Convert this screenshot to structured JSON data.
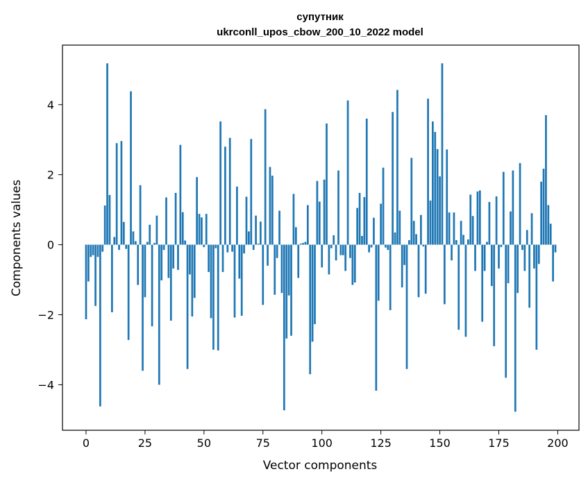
{
  "chart_data": {
    "type": "bar",
    "title": "супутник",
    "subtitle": "ukrconll_upos_cbow_200_10_2022 model",
    "xlabel": "Vector components",
    "ylabel": "Components values",
    "xlim": [
      -10,
      209
    ],
    "ylim": [
      -5.3,
      5.7
    ],
    "xticks": [
      0,
      25,
      50,
      75,
      100,
      125,
      150,
      175,
      200
    ],
    "yticks": [
      -4,
      -2,
      0,
      2,
      4
    ],
    "xtick_labels": [
      "0",
      "25",
      "50",
      "75",
      "100",
      "125",
      "150",
      "175",
      "200"
    ],
    "ytick_labels": [
      "−4",
      "−2",
      "0",
      "2",
      "4"
    ],
    "bar_color": "#1f77b4",
    "grid": false,
    "legend": "none",
    "x": [
      0,
      1,
      2,
      3,
      4,
      5,
      6,
      7,
      8,
      9,
      10,
      11,
      12,
      13,
      14,
      15,
      16,
      17,
      18,
      19,
      20,
      21,
      22,
      23,
      24,
      25,
      26,
      27,
      28,
      29,
      30,
      31,
      32,
      33,
      34,
      35,
      36,
      37,
      38,
      39,
      40,
      41,
      42,
      43,
      44,
      45,
      46,
      47,
      48,
      49,
      50,
      51,
      52,
      53,
      54,
      55,
      56,
      57,
      58,
      59,
      60,
      61,
      62,
      63,
      64,
      65,
      66,
      67,
      68,
      69,
      70,
      71,
      72,
      73,
      74,
      75,
      76,
      77,
      78,
      79,
      80,
      81,
      82,
      83,
      84,
      85,
      86,
      87,
      88,
      89,
      90,
      91,
      92,
      93,
      94,
      95,
      96,
      97,
      98,
      99,
      100,
      101,
      102,
      103,
      104,
      105,
      106,
      107,
      108,
      109,
      110,
      111,
      112,
      113,
      114,
      115,
      116,
      117,
      118,
      119,
      120,
      121,
      122,
      123,
      124,
      125,
      126,
      127,
      128,
      129,
      130,
      131,
      132,
      133,
      134,
      135,
      136,
      137,
      138,
      139,
      140,
      141,
      142,
      143,
      144,
      145,
      146,
      147,
      148,
      149,
      150,
      151,
      152,
      153,
      154,
      155,
      156,
      157,
      158,
      159,
      160,
      161,
      162,
      163,
      164,
      165,
      166,
      167,
      168,
      169,
      170,
      171,
      172,
      173,
      174,
      175,
      176,
      177,
      178,
      179,
      180,
      181,
      182,
      183,
      184,
      185,
      186,
      187,
      188,
      189,
      190,
      191,
      192,
      193,
      194,
      195,
      196,
      197,
      198,
      199
    ],
    "values": [
      -2.13,
      -1.05,
      -0.35,
      -0.3,
      -1.75,
      -0.35,
      -4.62,
      -0.2,
      1.12,
      5.18,
      1.42,
      -1.93,
      0.22,
      2.9,
      -0.15,
      2.96,
      0.65,
      -0.12,
      -2.72,
      4.38,
      0.38,
      0.1,
      -1.15,
      1.7,
      -3.6,
      -1.5,
      0.08,
      0.57,
      -2.33,
      0.05,
      0.83,
      -4.0,
      -1.02,
      -0.15,
      1.35,
      -0.95,
      -2.17,
      -0.68,
      1.48,
      -0.72,
      2.85,
      0.93,
      0.12,
      -3.55,
      -0.85,
      -2.05,
      -1.52,
      1.93,
      0.88,
      0.78,
      -0.07,
      0.88,
      -0.78,
      -2.1,
      -3.0,
      -0.1,
      -3.02,
      3.52,
      -0.78,
      2.8,
      -0.22,
      3.05,
      -0.2,
      -2.08,
      1.66,
      -0.97,
      -2.03,
      -0.25,
      1.37,
      0.38,
      3.02,
      -0.15,
      0.83,
      0.03,
      0.66,
      -1.72,
      3.87,
      -0.6,
      2.22,
      1.97,
      -1.43,
      -0.38,
      0.97,
      -1.38,
      -4.73,
      -2.68,
      -1.45,
      -2.6,
      1.45,
      0.5,
      -0.95,
      0.03,
      0.05,
      0.08,
      1.13,
      -3.7,
      -2.77,
      -2.27,
      1.82,
      1.23,
      -0.65,
      1.86,
      3.46,
      -0.85,
      -0.1,
      0.27,
      -0.45,
      2.12,
      -0.3,
      -0.3,
      -0.75,
      4.12,
      -0.38,
      -1.15,
      -1.08,
      1.05,
      1.48,
      0.25,
      1.36,
      3.6,
      -0.22,
      -0.08,
      0.77,
      -4.17,
      -1.6,
      1.17,
      2.2,
      -0.08,
      -0.15,
      -1.87,
      3.79,
      0.35,
      4.42,
      0.97,
      -1.22,
      -0.58,
      -3.55,
      0.13,
      2.48,
      0.68,
      0.3,
      -1.5,
      0.85,
      -0.05,
      -1.4,
      4.17,
      1.26,
      3.52,
      3.22,
      2.73,
      1.95,
      5.18,
      -1.7,
      2.72,
      0.92,
      -0.45,
      0.92,
      0.13,
      -2.43,
      0.68,
      0.28,
      -2.63,
      0.15,
      1.43,
      0.82,
      -0.75,
      1.52,
      1.55,
      -2.2,
      -0.75,
      0.08,
      1.22,
      -1.18,
      -2.9,
      1.38,
      -0.68,
      -0.07,
      2.08,
      -3.8,
      -1.1,
      0.95,
      2.12,
      -4.77,
      -1.38,
      2.33,
      -0.15,
      -0.75,
      0.42,
      -1.8,
      0.9,
      -0.68,
      -3.0,
      -0.55,
      1.8,
      2.17,
      3.7,
      1.13,
      0.6,
      -1.05,
      -0.22
    ]
  }
}
